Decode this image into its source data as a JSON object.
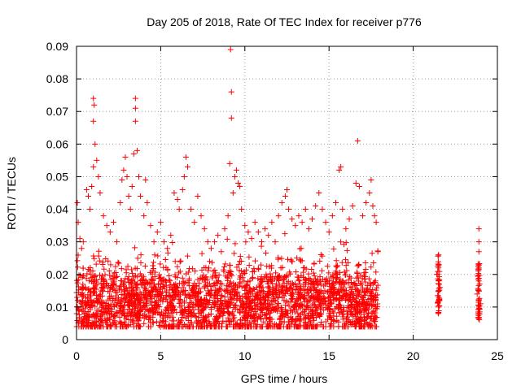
{
  "colors": {
    "points": "#ff0000",
    "grid": "#a0a0a0",
    "axis": "#000000"
  },
  "chart_data": {
    "type": "scatter",
    "title": "Day 205 of 2018, Rate Of TEC Index for receiver p776",
    "xlabel": "GPS time / hours",
    "ylabel": "ROTI / TECUs",
    "xlim": [
      0,
      25
    ],
    "ylim": [
      0,
      0.09
    ],
    "grid": true,
    "marker": "plus",
    "xticks": [
      0,
      5,
      10,
      15,
      20,
      25
    ],
    "xtick_labels": [
      "0",
      "5",
      "10",
      "15",
      "20",
      "25"
    ],
    "yticks": [
      0,
      0.01,
      0.02,
      0.03,
      0.04,
      0.05,
      0.06,
      0.07,
      0.08,
      0.09
    ],
    "ytick_labels": [
      "0",
      "0.01",
      "0.02",
      "0.03",
      "0.04",
      "0.05",
      "0.06",
      "0.07",
      "0.08",
      "0.09"
    ],
    "series": [
      {
        "name": "ROTI",
        "dense_band": {
          "x_range": [
            0,
            17.9
          ],
          "y_typical": [
            0.004,
            0.028
          ]
        },
        "points": [
          [
            0.05,
            0.042
          ],
          [
            0.1,
            0.036
          ],
          [
            0.2,
            0.031
          ],
          [
            0.3,
            0.028
          ],
          [
            0.4,
            0.03
          ],
          [
            0.6,
            0.046
          ],
          [
            0.7,
            0.044
          ],
          [
            0.8,
            0.04
          ],
          [
            0.9,
            0.047
          ],
          [
            1.0,
            0.053
          ],
          [
            1.0,
            0.074
          ],
          [
            1.05,
            0.072
          ],
          [
            1.0,
            0.067
          ],
          [
            1.1,
            0.06
          ],
          [
            1.2,
            0.055
          ],
          [
            1.3,
            0.05
          ],
          [
            1.4,
            0.045
          ],
          [
            1.6,
            0.038
          ],
          [
            1.8,
            0.035
          ],
          [
            2.0,
            0.033
          ],
          [
            2.2,
            0.036
          ],
          [
            2.4,
            0.03
          ],
          [
            2.6,
            0.042
          ],
          [
            2.7,
            0.049
          ],
          [
            2.8,
            0.052
          ],
          [
            2.9,
            0.056
          ],
          [
            3.0,
            0.05
          ],
          [
            3.1,
            0.044
          ],
          [
            3.2,
            0.04
          ],
          [
            3.3,
            0.047
          ],
          [
            3.4,
            0.057
          ],
          [
            3.5,
            0.074
          ],
          [
            3.5,
            0.071
          ],
          [
            3.5,
            0.067
          ],
          [
            3.6,
            0.058
          ],
          [
            3.7,
            0.05
          ],
          [
            3.8,
            0.044
          ],
          [
            4.0,
            0.038
          ],
          [
            4.1,
            0.049
          ],
          [
            4.2,
            0.042
          ],
          [
            4.4,
            0.035
          ],
          [
            4.6,
            0.03
          ],
          [
            4.8,
            0.033
          ],
          [
            5.0,
            0.036
          ],
          [
            5.2,
            0.03
          ],
          [
            5.4,
            0.028
          ],
          [
            5.6,
            0.032
          ],
          [
            5.8,
            0.045
          ],
          [
            6.0,
            0.043
          ],
          [
            6.1,
            0.04
          ],
          [
            6.3,
            0.046
          ],
          [
            6.4,
            0.05
          ],
          [
            6.5,
            0.056
          ],
          [
            6.6,
            0.053
          ],
          [
            6.8,
            0.04
          ],
          [
            7.0,
            0.036
          ],
          [
            7.2,
            0.044
          ],
          [
            7.4,
            0.038
          ],
          [
            7.6,
            0.034
          ],
          [
            7.8,
            0.03
          ],
          [
            8.0,
            0.028
          ],
          [
            8.2,
            0.03
          ],
          [
            8.4,
            0.032
          ],
          [
            8.6,
            0.027
          ],
          [
            8.8,
            0.034
          ],
          [
            9.0,
            0.038
          ],
          [
            9.1,
            0.054
          ],
          [
            9.15,
            0.089
          ],
          [
            9.2,
            0.076
          ],
          [
            9.2,
            0.068
          ],
          [
            9.3,
            0.045
          ],
          [
            9.4,
            0.05
          ],
          [
            9.5,
            0.052
          ],
          [
            9.6,
            0.048
          ],
          [
            9.7,
            0.047
          ],
          [
            9.8,
            0.04
          ],
          [
            10.0,
            0.035
          ],
          [
            10.2,
            0.033
          ],
          [
            10.4,
            0.031
          ],
          [
            10.6,
            0.036
          ],
          [
            10.8,
            0.033
          ],
          [
            11.0,
            0.03
          ],
          [
            11.2,
            0.034
          ],
          [
            11.4,
            0.032
          ],
          [
            11.6,
            0.036
          ],
          [
            11.8,
            0.03
          ],
          [
            12.0,
            0.038
          ],
          [
            12.2,
            0.042
          ],
          [
            12.4,
            0.044
          ],
          [
            12.5,
            0.046
          ],
          [
            12.6,
            0.04
          ],
          [
            12.8,
            0.037
          ],
          [
            13.0,
            0.035
          ],
          [
            13.2,
            0.038
          ],
          [
            13.4,
            0.036
          ],
          [
            13.6,
            0.04
          ],
          [
            13.8,
            0.034
          ],
          [
            14.0,
            0.037
          ],
          [
            14.2,
            0.041
          ],
          [
            14.4,
            0.045
          ],
          [
            14.6,
            0.04
          ],
          [
            14.8,
            0.036
          ],
          [
            15.0,
            0.033
          ],
          [
            15.2,
            0.038
          ],
          [
            15.4,
            0.042
          ],
          [
            15.6,
            0.052
          ],
          [
            15.7,
            0.053
          ],
          [
            15.8,
            0.04
          ],
          [
            16.0,
            0.034
          ],
          [
            16.2,
            0.037
          ],
          [
            16.4,
            0.041
          ],
          [
            16.6,
            0.048
          ],
          [
            16.7,
            0.061
          ],
          [
            16.8,
            0.047
          ],
          [
            17.0,
            0.038
          ],
          [
            17.2,
            0.042
          ],
          [
            17.4,
            0.045
          ],
          [
            17.5,
            0.049
          ],
          [
            17.6,
            0.041
          ],
          [
            17.7,
            0.038
          ],
          [
            17.8,
            0.036
          ],
          [
            17.9,
            0.027
          ],
          [
            21.5,
            0.026
          ],
          [
            21.5,
            0.022
          ],
          [
            21.5,
            0.018
          ],
          [
            21.5,
            0.015
          ],
          [
            21.5,
            0.012
          ],
          [
            21.5,
            0.01
          ],
          [
            21.5,
            0.008
          ],
          [
            21.4,
            0.02
          ],
          [
            21.6,
            0.016
          ],
          [
            23.9,
            0.034
          ],
          [
            23.9,
            0.03
          ],
          [
            23.9,
            0.027
          ],
          [
            23.9,
            0.022
          ],
          [
            23.9,
            0.018
          ],
          [
            23.9,
            0.015
          ],
          [
            23.9,
            0.012
          ],
          [
            23.9,
            0.01
          ],
          [
            23.9,
            0.008
          ],
          [
            23.8,
            0.014
          ],
          [
            24.0,
            0.011
          ]
        ]
      }
    ]
  }
}
